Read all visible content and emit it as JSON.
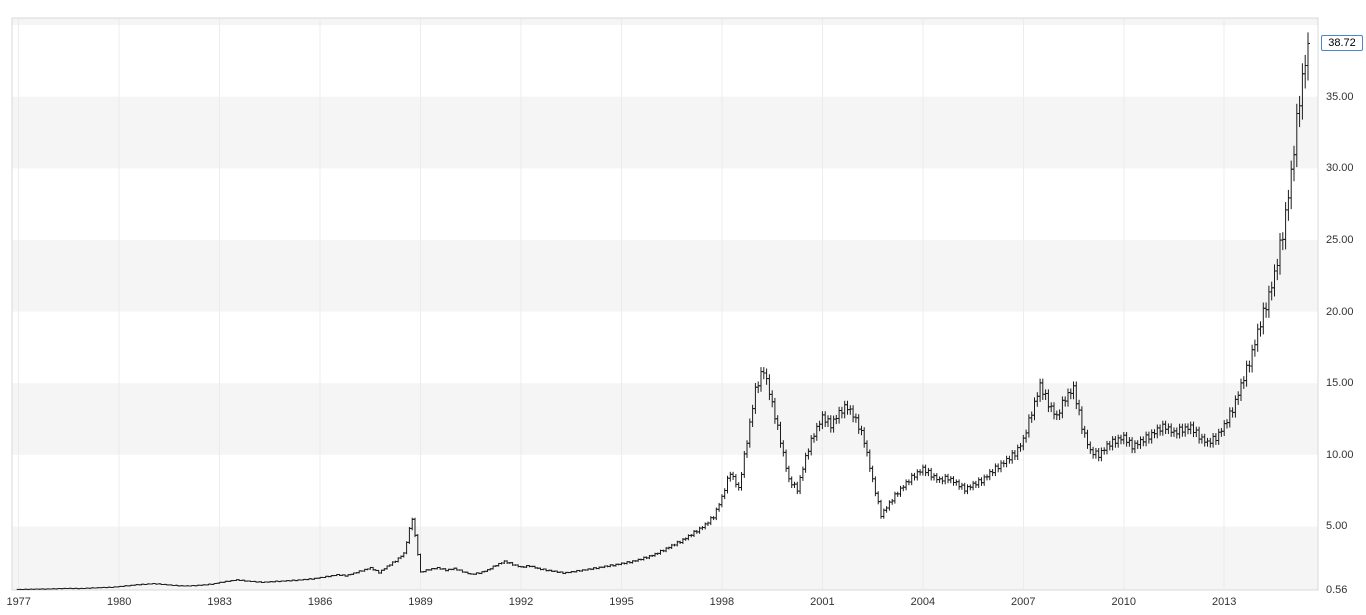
{
  "chart": {
    "last_price_label": "38.72",
    "y_axis_labels": [
      {
        "value": 35,
        "label": "35.00"
      },
      {
        "value": 30,
        "label": "30.00"
      },
      {
        "value": 25,
        "label": "25.00"
      },
      {
        "value": 20,
        "label": "20.00"
      },
      {
        "value": 15,
        "label": "15.00"
      },
      {
        "value": 10,
        "label": "10.00"
      },
      {
        "value": 5,
        "label": "5.00"
      },
      {
        "value": 0.56,
        "label": "0.56"
      }
    ],
    "x_axis_labels": [
      {
        "value": 1977,
        "label": "1977"
      },
      {
        "value": 1980,
        "label": "1980"
      },
      {
        "value": 1983,
        "label": "1983"
      },
      {
        "value": 1986,
        "label": "1986"
      },
      {
        "value": 1989,
        "label": "1989"
      },
      {
        "value": 1992,
        "label": "1992"
      },
      {
        "value": 1995,
        "label": "1995"
      },
      {
        "value": 1998,
        "label": "1998"
      },
      {
        "value": 2001,
        "label": "2001"
      },
      {
        "value": 2004,
        "label": "2004"
      },
      {
        "value": 2007,
        "label": "2007"
      },
      {
        "value": 2010,
        "label": "2010"
      },
      {
        "value": 2013,
        "label": "2013"
      }
    ],
    "colors": {
      "bar": "#1b1b1b",
      "band": "#f5f5f5",
      "vgrid": "#ececec",
      "frame": "#d9d9d9",
      "axis_text": "#333333",
      "badge_border": "#4a86c8",
      "badge_bg": "#ffffff",
      "badge_text": "#000000"
    }
  },
  "chart_data": {
    "type": "ohlc",
    "subtype": "monthly-price-bars",
    "title": "",
    "xlabel": "",
    "ylabel": "",
    "x_unit": "decimal_year",
    "xlim": [
      1976.8,
      2015.8
    ],
    "ylim": [
      0.56,
      40.5
    ],
    "y_gridlines": [
      5,
      10,
      15,
      20,
      25,
      30,
      35
    ],
    "x_ticks": [
      1977,
      1980,
      1983,
      1986,
      1989,
      1992,
      1995,
      1998,
      2001,
      2004,
      2007,
      2010,
      2013
    ],
    "last_close": 38.72,
    "legend": null,
    "grid": "alternating horizontal bands every 5 units, faint vertical lines at 3-year ticks",
    "points_note": "quarterly close estimates [decimal_year, close] read from chart",
    "points": [
      [
        1977.0,
        0.6
      ],
      [
        1977.25,
        0.61
      ],
      [
        1977.5,
        0.62
      ],
      [
        1977.75,
        0.63
      ],
      [
        1978.0,
        0.64
      ],
      [
        1978.25,
        0.66
      ],
      [
        1978.5,
        0.67
      ],
      [
        1978.75,
        0.66
      ],
      [
        1979.0,
        0.68
      ],
      [
        1979.25,
        0.71
      ],
      [
        1979.5,
        0.73
      ],
      [
        1979.75,
        0.75
      ],
      [
        1980.0,
        0.8
      ],
      [
        1980.25,
        0.86
      ],
      [
        1980.5,
        0.92
      ],
      [
        1980.75,
        0.96
      ],
      [
        1981.0,
        1.0
      ],
      [
        1981.25,
        0.96
      ],
      [
        1981.5,
        0.9
      ],
      [
        1981.75,
        0.86
      ],
      [
        1982.0,
        0.84
      ],
      [
        1982.25,
        0.87
      ],
      [
        1982.5,
        0.91
      ],
      [
        1982.75,
        0.97
      ],
      [
        1983.0,
        1.08
      ],
      [
        1983.25,
        1.18
      ],
      [
        1983.5,
        1.26
      ],
      [
        1983.75,
        1.2
      ],
      [
        1984.0,
        1.14
      ],
      [
        1984.25,
        1.1
      ],
      [
        1984.5,
        1.13
      ],
      [
        1984.75,
        1.17
      ],
      [
        1985.0,
        1.2
      ],
      [
        1985.25,
        1.24
      ],
      [
        1985.5,
        1.28
      ],
      [
        1985.75,
        1.34
      ],
      [
        1986.0,
        1.42
      ],
      [
        1986.25,
        1.52
      ],
      [
        1986.5,
        1.62
      ],
      [
        1986.75,
        1.56
      ],
      [
        1987.0,
        1.72
      ],
      [
        1987.25,
        1.92
      ],
      [
        1987.5,
        2.1
      ],
      [
        1987.75,
        1.78
      ],
      [
        1988.0,
        2.2
      ],
      [
        1988.25,
        2.6
      ],
      [
        1988.5,
        3.1
      ],
      [
        1988.75,
        5.6
      ],
      [
        1989.0,
        1.8
      ],
      [
        1989.25,
        2.0
      ],
      [
        1989.5,
        2.1
      ],
      [
        1989.75,
        1.95
      ],
      [
        1990.0,
        2.05
      ],
      [
        1990.25,
        1.85
      ],
      [
        1990.5,
        1.65
      ],
      [
        1990.75,
        1.75
      ],
      [
        1991.0,
        1.95
      ],
      [
        1991.25,
        2.3
      ],
      [
        1991.5,
        2.55
      ],
      [
        1991.75,
        2.35
      ],
      [
        1992.0,
        2.15
      ],
      [
        1992.25,
        2.25
      ],
      [
        1992.5,
        2.05
      ],
      [
        1992.75,
        1.95
      ],
      [
        1993.0,
        1.85
      ],
      [
        1993.25,
        1.75
      ],
      [
        1993.5,
        1.82
      ],
      [
        1993.75,
        1.92
      ],
      [
        1994.0,
        2.0
      ],
      [
        1994.25,
        2.1
      ],
      [
        1994.5,
        2.2
      ],
      [
        1994.75,
        2.3
      ],
      [
        1995.0,
        2.4
      ],
      [
        1995.25,
        2.52
      ],
      [
        1995.5,
        2.66
      ],
      [
        1995.75,
        2.85
      ],
      [
        1996.0,
        3.05
      ],
      [
        1996.25,
        3.35
      ],
      [
        1996.5,
        3.65
      ],
      [
        1996.75,
        3.95
      ],
      [
        1997.0,
        4.3
      ],
      [
        1997.25,
        4.7
      ],
      [
        1997.5,
        5.1
      ],
      [
        1997.75,
        5.7
      ],
      [
        1998.0,
        7.0
      ],
      [
        1998.25,
        8.8
      ],
      [
        1998.5,
        7.6
      ],
      [
        1998.75,
        11.0
      ],
      [
        1999.0,
        14.5
      ],
      [
        1999.25,
        16.0
      ],
      [
        1999.5,
        13.5
      ],
      [
        1999.75,
        11.0
      ],
      [
        2000.0,
        8.2
      ],
      [
        2000.25,
        7.6
      ],
      [
        2000.5,
        9.8
      ],
      [
        2000.75,
        11.5
      ],
      [
        2001.0,
        12.6
      ],
      [
        2001.25,
        12.1
      ],
      [
        2001.5,
        12.9
      ],
      [
        2001.75,
        13.4
      ],
      [
        2002.0,
        12.4
      ],
      [
        2002.25,
        11.0
      ],
      [
        2002.5,
        8.2
      ],
      [
        2002.75,
        5.8
      ],
      [
        2003.0,
        6.6
      ],
      [
        2003.25,
        7.4
      ],
      [
        2003.5,
        8.0
      ],
      [
        2003.75,
        8.6
      ],
      [
        2004.0,
        9.0
      ],
      [
        2004.25,
        8.6
      ],
      [
        2004.5,
        8.2
      ],
      [
        2004.75,
        8.4
      ],
      [
        2005.0,
        8.0
      ],
      [
        2005.25,
        7.6
      ],
      [
        2005.5,
        7.9
      ],
      [
        2005.75,
        8.2
      ],
      [
        2006.0,
        8.7
      ],
      [
        2006.25,
        9.2
      ],
      [
        2006.5,
        9.6
      ],
      [
        2006.75,
        10.1
      ],
      [
        2007.0,
        11.0
      ],
      [
        2007.25,
        13.0
      ],
      [
        2007.5,
        14.8
      ],
      [
        2007.75,
        13.6
      ],
      [
        2008.0,
        12.6
      ],
      [
        2008.25,
        14.0
      ],
      [
        2008.5,
        14.6
      ],
      [
        2008.75,
        12.0
      ],
      [
        2009.0,
        10.2
      ],
      [
        2009.25,
        10.0
      ],
      [
        2009.5,
        10.6
      ],
      [
        2009.75,
        11.0
      ],
      [
        2010.0,
        11.2
      ],
      [
        2010.25,
        10.6
      ],
      [
        2010.5,
        10.9
      ],
      [
        2010.75,
        11.3
      ],
      [
        2011.0,
        11.7
      ],
      [
        2011.25,
        12.0
      ],
      [
        2011.5,
        11.5
      ],
      [
        2011.75,
        11.8
      ],
      [
        2012.0,
        11.9
      ],
      [
        2012.25,
        11.3
      ],
      [
        2012.5,
        10.8
      ],
      [
        2012.75,
        11.2
      ],
      [
        2013.0,
        12.0
      ],
      [
        2013.25,
        13.2
      ],
      [
        2013.5,
        14.8
      ],
      [
        2013.75,
        16.5
      ],
      [
        2014.0,
        18.5
      ],
      [
        2014.25,
        20.5
      ],
      [
        2014.5,
        22.5
      ],
      [
        2014.75,
        25.5
      ],
      [
        2015.0,
        29.5
      ],
      [
        2015.25,
        35.0
      ],
      [
        2015.5,
        38.72
      ]
    ]
  }
}
